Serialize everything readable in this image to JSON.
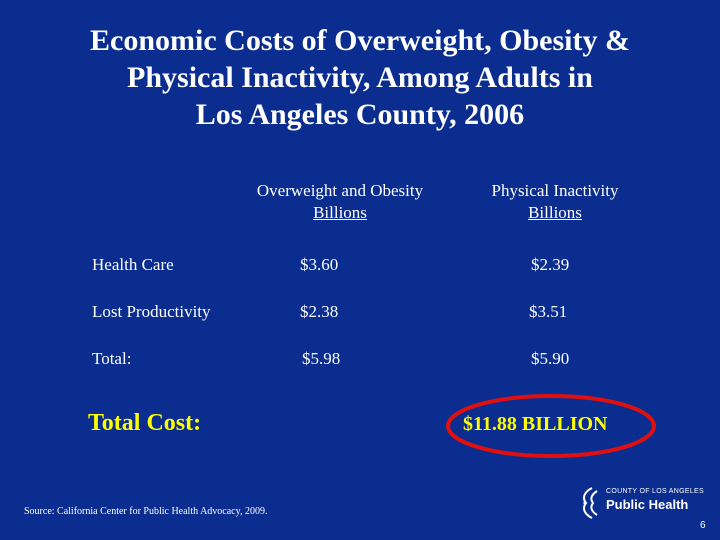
{
  "slide": {
    "title_lines": [
      "Economic Costs of Overweight, Obesity &",
      "Physical Inactivity, Among Adults in",
      "Los Angeles County, 2006"
    ],
    "columns": [
      {
        "heading": "Overweight and Obesity",
        "unit": "Billions"
      },
      {
        "heading": "Physical Inactivity",
        "unit": "Billions"
      }
    ],
    "rows": [
      {
        "label": "Health Care",
        "values": [
          "$3.60",
          "$2.39"
        ]
      },
      {
        "label": "Lost Productivity",
        "values": [
          "$2.38",
          "$3.51"
        ]
      },
      {
        "label": "Total:",
        "values": [
          "$5.98",
          "$5.90"
        ]
      }
    ],
    "total_label": "Total Cost:",
    "total_value": "$11.88 BILLION",
    "source": "Source: California Center for Public Health Advocacy,  2009.",
    "page_number": "6"
  },
  "logo": {
    "small_text": "COUNTY OF LOS ANGELES",
    "big_text": "Public Health",
    "icon": "la-county-logo-icon"
  },
  "colors": {
    "background": "#0a2d8f",
    "text": "#ffffff",
    "highlight": "#ffff00",
    "circle": "#e01010"
  }
}
